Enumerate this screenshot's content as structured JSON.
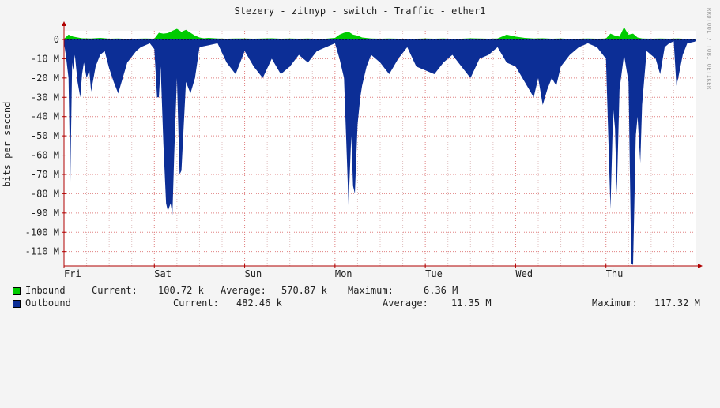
{
  "title": "Stezery - zitnyp - switch - Traffic - ether1",
  "watermark": "RRDTOOL / TOBI OETIKER",
  "ylabel": "bits per second",
  "colors": {
    "inbound": "#00cc00",
    "outbound": "#0c2e96",
    "grid_minor": "#e0c0c0",
    "grid_major": "#e08080",
    "axis": "#b00000",
    "canvas": "#ffffff"
  },
  "legend": {
    "inbound": {
      "name": "Inbound",
      "current_label": "Current:",
      "current": "100.72 k",
      "average_label": "Average:",
      "average": "570.87 k",
      "maximum_label": "Maximum:",
      "maximum": "6.36 M"
    },
    "outbound": {
      "name": "Outbound",
      "current_label": "Current:",
      "current": "482.46 k",
      "average_label": "Average:",
      "average": "11.35 M",
      "maximum_label": "Maximum:",
      "maximum": "117.32 M"
    }
  },
  "chart_data": {
    "type": "area",
    "title": "Stezery - zitnyp - switch - Traffic - ether1",
    "ylabel": "bits per second",
    "ylim": [
      -117.5,
      4.5
    ],
    "yticks": [
      0,
      -10,
      -20,
      -30,
      -40,
      -50,
      -60,
      -70,
      -80,
      -90,
      -100,
      -110
    ],
    "ytick_labels": [
      "0",
      "-10 M",
      "-20 M",
      "-30 M",
      "-40 M",
      "-50 M",
      "-60 M",
      "-70 M",
      "-80 M",
      "-90 M",
      "-100 M",
      "-110 M"
    ],
    "xlim": [
      0,
      7.0
    ],
    "xticks": [
      0,
      1,
      2,
      3,
      4,
      5,
      6
    ],
    "xtick_labels": [
      "Fri",
      "Sat",
      "Sun",
      "Mon",
      "Tue",
      "Wed",
      "Thu"
    ],
    "x_unit": "days",
    "grid": true,
    "series": [
      {
        "name": "Inbound",
        "x": [
          0,
          0.05,
          0.1,
          0.2,
          0.3,
          0.4,
          0.5,
          0.6,
          0.7,
          0.8,
          0.9,
          1.0,
          1.05,
          1.1,
          1.15,
          1.2,
          1.25,
          1.3,
          1.35,
          1.4,
          1.45,
          1.5,
          1.55,
          1.6,
          1.7,
          1.8,
          1.9,
          2.0,
          2.1,
          2.2,
          2.3,
          2.4,
          2.5,
          2.6,
          2.7,
          2.8,
          2.9,
          3.0,
          3.05,
          3.1,
          3.15,
          3.2,
          3.25,
          3.3,
          3.4,
          3.5,
          3.6,
          3.7,
          3.8,
          3.9,
          4.0,
          4.1,
          4.2,
          4.3,
          4.4,
          4.5,
          4.6,
          4.7,
          4.8,
          4.9,
          5.0,
          5.1,
          5.2,
          5.3,
          5.4,
          5.5,
          5.6,
          5.7,
          5.8,
          5.9,
          6.0,
          6.05,
          6.1,
          6.15,
          6.2,
          6.25,
          6.3,
          6.35,
          6.4,
          6.5,
          6.6,
          6.7,
          6.8,
          6.9,
          7.0
        ],
        "values": [
          0.3,
          2.5,
          1.5,
          0.6,
          0.5,
          0.8,
          0.4,
          0.5,
          0.3,
          0.4,
          0.5,
          0.4,
          3.5,
          3.0,
          3.3,
          4.5,
          5.5,
          4.0,
          5.0,
          3.5,
          2.0,
          1.0,
          0.6,
          0.8,
          0.5,
          0.4,
          0.5,
          0.5,
          0.4,
          0.5,
          0.6,
          0.4,
          0.5,
          0.4,
          0.5,
          0.3,
          0.4,
          0.8,
          2.5,
          3.5,
          4.0,
          2.5,
          2.0,
          1.0,
          0.5,
          0.4,
          0.5,
          0.4,
          0.3,
          0.4,
          0.5,
          0.4,
          0.5,
          0.3,
          0.4,
          0.6,
          0.5,
          0.4,
          0.5,
          2.5,
          1.5,
          0.8,
          0.5,
          0.6,
          0.4,
          0.5,
          0.3,
          0.4,
          0.5,
          0.4,
          0.5,
          3.0,
          2.0,
          1.5,
          6.36,
          2.5,
          3.0,
          1.0,
          0.5,
          0.4,
          0.5,
          0.4,
          0.5,
          0.3,
          0.1
        ]
      },
      {
        "name": "Outbound",
        "x": [
          0,
          0.02,
          0.05,
          0.07,
          0.09,
          0.1,
          0.12,
          0.15,
          0.18,
          0.2,
          0.22,
          0.25,
          0.28,
          0.3,
          0.35,
          0.4,
          0.45,
          0.5,
          0.55,
          0.6,
          0.7,
          0.8,
          0.85,
          0.9,
          0.95,
          1.0,
          1.03,
          1.05,
          1.07,
          1.1,
          1.13,
          1.15,
          1.18,
          1.2,
          1.22,
          1.25,
          1.28,
          1.3,
          1.35,
          1.4,
          1.45,
          1.5,
          1.6,
          1.7,
          1.8,
          1.9,
          2.0,
          2.1,
          2.2,
          2.3,
          2.4,
          2.5,
          2.6,
          2.7,
          2.8,
          2.9,
          3.0,
          3.05,
          3.1,
          3.15,
          3.18,
          3.2,
          3.22,
          3.25,
          3.28,
          3.3,
          3.35,
          3.4,
          3.5,
          3.6,
          3.7,
          3.8,
          3.9,
          4.0,
          4.1,
          4.2,
          4.3,
          4.4,
          4.5,
          4.6,
          4.7,
          4.8,
          4.9,
          5.0,
          5.1,
          5.2,
          5.25,
          5.3,
          5.35,
          5.4,
          5.45,
          5.5,
          5.6,
          5.7,
          5.8,
          5.9,
          6.0,
          6.05,
          6.08,
          6.1,
          6.12,
          6.15,
          6.2,
          6.25,
          6.28,
          6.3,
          6.33,
          6.35,
          6.38,
          6.4,
          6.45,
          6.5,
          6.55,
          6.6,
          6.65,
          6.7,
          6.75,
          6.78,
          6.8,
          6.85,
          6.9,
          7.0
        ],
        "values": [
          -2,
          -8,
          -20,
          -74,
          -12,
          -16,
          -8,
          -22,
          -30,
          -18,
          -12,
          -20,
          -16,
          -27,
          -14,
          -8,
          -6,
          -15,
          -22,
          -28,
          -12,
          -6,
          -4,
          -3,
          -2,
          -5,
          -30,
          -30,
          -14,
          -54,
          -85,
          -89,
          -85,
          -91,
          -60,
          -20,
          -70,
          -68,
          -22,
          -28,
          -20,
          -4,
          -3,
          -2,
          -12,
          -18,
          -6,
          -14,
          -20,
          -10,
          -18,
          -14,
          -8,
          -12,
          -6,
          -4,
          -2,
          -10,
          -20,
          -86,
          -50,
          -76,
          -80,
          -44,
          -30,
          -24,
          -14,
          -8,
          -12,
          -18,
          -10,
          -4,
          -14,
          -16,
          -18,
          -12,
          -8,
          -14,
          -20,
          -10,
          -8,
          -4,
          -12,
          -14,
          -22,
          -30,
          -20,
          -34,
          -26,
          -20,
          -24,
          -14,
          -8,
          -4,
          -2,
          -4,
          -10,
          -88,
          -36,
          -46,
          -80,
          -26,
          -8,
          -22,
          -116,
          -117,
          -50,
          -40,
          -64,
          -34,
          -6,
          -8,
          -10,
          -18,
          -4,
          -2,
          -1,
          -24,
          -20,
          -8,
          -2,
          -1
        ]
      }
    ]
  }
}
